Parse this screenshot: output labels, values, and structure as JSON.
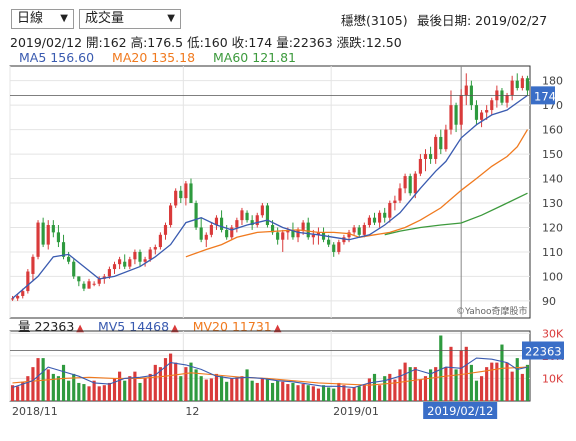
{
  "controls": {
    "period_select": "日線",
    "indicator_select": "成交量"
  },
  "header": {
    "stock": "穩懋(3105)",
    "last_date_label": "最後日期: 2019/02/27"
  },
  "ohlc_line": {
    "date": "2019/02/12",
    "open": "開:162",
    "high": "高:176.5",
    "low": "低:160",
    "close": "收:174",
    "volume": "量:22363",
    "change": "漲跌:12.50"
  },
  "ma_legend": [
    {
      "label": "MA5",
      "value": "156.60",
      "color": "#3a5bb0"
    },
    {
      "label": "MA20",
      "value": "135.18",
      "color": "#f07a1f"
    },
    {
      "label": "MA60",
      "value": "121.81",
      "color": "#3d9a3d"
    }
  ],
  "vol_legend": [
    {
      "label": "量",
      "value": "22363",
      "color": "#222222"
    },
    {
      "label": "MV5",
      "value": "14468",
      "color": "#3a5bb0"
    },
    {
      "label": "MV20",
      "value": "11731",
      "color": "#f07a1f"
    }
  ],
  "colors": {
    "up": "#d93a3a",
    "down": "#2e9a3e",
    "axis": "#333333",
    "tag": "#3a6ec7"
  },
  "watermark": "©Yahoo奇摩股市",
  "chart_data": {
    "type": "candlestick",
    "price_axis": {
      "ticks": [
        90,
        100,
        110,
        120,
        130,
        140,
        150,
        160,
        170,
        180
      ],
      "ylim": [
        83,
        186
      ]
    },
    "volume_axis": {
      "ticks": [
        "10K",
        "20K",
        "30K"
      ],
      "tick_values": [
        10000,
        20000,
        30000
      ],
      "ylim": [
        0,
        31000
      ]
    },
    "x_labels": [
      "2018/11",
      "12",
      "2019/01"
    ],
    "x_label_index": [
      0,
      34,
      63
    ],
    "last_close_tag": "174",
    "last_volume_tag": "22363",
    "cursor_index": 88,
    "cursor_date_tag": "2019/02/12",
    "candles": [
      [
        91,
        92,
        90,
        91
      ],
      [
        91,
        93,
        90,
        92
      ],
      [
        92,
        95,
        91,
        94
      ],
      [
        94,
        103,
        93,
        102
      ],
      [
        101,
        109,
        98,
        108
      ],
      [
        108,
        123,
        107,
        122
      ],
      [
        122,
        124,
        112,
        113
      ],
      [
        113,
        123,
        111,
        121
      ],
      [
        121,
        123,
        116,
        118
      ],
      [
        118,
        121,
        112,
        114
      ],
      [
        114,
        117,
        107,
        108
      ],
      [
        108,
        110,
        105,
        106
      ],
      [
        106,
        107,
        99,
        100
      ],
      [
        100,
        100,
        96,
        98
      ],
      [
        97,
        98,
        94,
        95
      ],
      [
        95,
        99,
        95,
        98
      ],
      [
        97,
        98,
        96,
        97
      ],
      [
        97,
        100,
        96,
        99
      ],
      [
        99,
        101,
        97,
        100
      ],
      [
        100,
        104,
        99,
        103
      ],
      [
        103,
        106,
        101,
        105
      ],
      [
        105,
        108,
        103,
        107
      ],
      [
        106,
        109,
        103,
        104
      ],
      [
        104,
        108,
        103,
        107
      ],
      [
        107,
        111,
        105,
        110
      ],
      [
        110,
        111,
        104,
        106
      ],
      [
        106,
        108,
        104,
        107
      ],
      [
        107,
        112,
        106,
        111
      ],
      [
        111,
        113,
        109,
        112
      ],
      [
        112,
        118,
        111,
        117
      ],
      [
        117,
        122,
        115,
        121
      ],
      [
        121,
        130,
        120,
        129
      ],
      [
        129,
        136,
        128,
        135
      ],
      [
        135,
        137,
        130,
        132
      ],
      [
        132,
        139,
        129,
        138
      ],
      [
        138,
        140,
        130,
        130
      ],
      [
        130,
        131,
        119,
        120
      ],
      [
        120,
        124,
        114,
        115
      ],
      [
        115,
        118,
        112,
        117
      ],
      [
        117,
        122,
        116,
        121
      ],
      [
        121,
        125,
        119,
        124
      ],
      [
        124,
        127,
        118,
        119
      ],
      [
        119,
        121,
        115,
        116
      ],
      [
        116,
        121,
        115,
        120
      ],
      [
        120,
        124,
        118,
        123
      ],
      [
        123,
        128,
        121,
        127
      ],
      [
        126,
        127,
        122,
        123
      ],
      [
        123,
        125,
        119,
        121
      ],
      [
        121,
        126,
        120,
        125
      ],
      [
        125,
        130,
        124,
        129
      ],
      [
        129,
        130,
        120,
        121
      ],
      [
        121,
        123,
        117,
        118
      ],
      [
        118,
        120,
        113,
        115
      ],
      [
        115,
        119,
        110,
        118
      ],
      [
        118,
        120,
        115,
        119
      ],
      [
        119,
        122,
        115,
        116
      ],
      [
        116,
        120,
        114,
        119
      ],
      [
        119,
        123,
        117,
        122
      ],
      [
        122,
        124,
        115,
        116
      ],
      [
        116,
        119,
        113,
        117
      ],
      [
        117,
        120,
        113,
        118
      ],
      [
        118,
        120,
        114,
        115
      ],
      [
        115,
        117,
        112,
        113
      ],
      [
        113,
        114,
        108,
        110
      ],
      [
        110,
        115,
        109,
        114
      ],
      [
        114,
        117,
        113,
        116
      ],
      [
        116,
        119,
        114,
        118
      ],
      [
        118,
        121,
        117,
        120
      ],
      [
        120,
        121,
        116,
        117
      ],
      [
        117,
        122,
        116,
        121
      ],
      [
        121,
        125,
        120,
        124
      ],
      [
        124,
        126,
        121,
        122
      ],
      [
        122,
        127,
        120,
        126
      ],
      [
        126,
        128,
        122,
        124
      ],
      [
        124,
        131,
        122,
        130
      ],
      [
        130,
        133,
        127,
        131
      ],
      [
        131,
        138,
        130,
        136
      ],
      [
        136,
        142,
        134,
        141
      ],
      [
        141,
        142,
        133,
        134
      ],
      [
        134,
        143,
        132,
        142
      ],
      [
        142,
        150,
        141,
        148
      ],
      [
        148,
        152,
        143,
        150
      ],
      [
        150,
        153,
        146,
        148
      ],
      [
        148,
        158,
        146,
        157
      ],
      [
        157,
        160,
        150,
        152
      ],
      [
        152,
        162,
        151,
        160
      ],
      [
        160,
        176,
        158,
        170
      ],
      [
        170,
        171,
        159,
        162
      ],
      [
        162,
        176.5,
        160,
        174
      ],
      [
        174,
        183,
        170,
        178
      ],
      [
        178,
        180,
        168,
        170
      ],
      [
        170,
        172,
        162,
        164
      ],
      [
        164,
        168,
        161,
        167
      ],
      [
        167,
        170,
        164,
        168
      ],
      [
        168,
        173,
        166,
        172
      ],
      [
        172,
        178,
        169,
        176
      ],
      [
        176,
        177,
        170,
        171
      ],
      [
        171,
        175,
        169,
        174
      ],
      [
        174,
        182,
        172,
        180
      ],
      [
        180,
        183,
        176,
        177
      ],
      [
        177,
        182,
        176,
        181
      ],
      [
        181,
        182,
        174,
        176
      ]
    ],
    "volumes": [
      7000,
      6500,
      8500,
      11000,
      15000,
      19000,
      19000,
      14000,
      12000,
      11000,
      16000,
      9000,
      12000,
      8000,
      7500,
      6500,
      9000,
      6500,
      7000,
      8000,
      10000,
      13000,
      9000,
      11000,
      13000,
      8000,
      10000,
      12000,
      16000,
      15000,
      19000,
      21000,
      17000,
      11000,
      15000,
      17000,
      14000,
      11000,
      9500,
      10000,
      12000,
      11000,
      8500,
      10000,
      10500,
      11000,
      14000,
      9000,
      8000,
      10000,
      9500,
      8000,
      9000,
      8500,
      7500,
      8000,
      7000,
      7500,
      7000,
      6500,
      5500,
      7000,
      6000,
      5500,
      8000,
      7000,
      5500,
      6000,
      6500,
      7000,
      10000,
      12000,
      7000,
      11000,
      12000,
      9500,
      14000,
      17000,
      15000,
      15000,
      9500,
      11000,
      14000,
      15000,
      29000,
      15000,
      24000,
      14000,
      22363,
      24000,
      16000,
      9000,
      11000,
      15000,
      17000,
      17000,
      25000,
      17000,
      13000,
      19000,
      12000,
      16000
    ],
    "ma5": [
      [
        0,
        91
      ],
      [
        5,
        100
      ],
      [
        8,
        108
      ],
      [
        11,
        109
      ],
      [
        14,
        104
      ],
      [
        17,
        99
      ],
      [
        20,
        100
      ],
      [
        25,
        104
      ],
      [
        28,
        108
      ],
      [
        31,
        113
      ],
      [
        34,
        122
      ],
      [
        37,
        124
      ],
      [
        40,
        121
      ],
      [
        43,
        119
      ],
      [
        46,
        121
      ],
      [
        50,
        123
      ],
      [
        53,
        120
      ],
      [
        56,
        118
      ],
      [
        60,
        117
      ],
      [
        63,
        116
      ],
      [
        66,
        115
      ],
      [
        70,
        117
      ],
      [
        73,
        121
      ],
      [
        76,
        126
      ],
      [
        78,
        131
      ],
      [
        80,
        136
      ],
      [
        83,
        143
      ],
      [
        85,
        147
      ],
      [
        88,
        156.6
      ],
      [
        91,
        162
      ],
      [
        94,
        166
      ],
      [
        97,
        168
      ],
      [
        101,
        174
      ]
    ],
    "ma20": [
      [
        34,
        108
      ],
      [
        38,
        111
      ],
      [
        41,
        113
      ],
      [
        44,
        116
      ],
      [
        48,
        118
      ],
      [
        52,
        118.5
      ],
      [
        56,
        119
      ],
      [
        60,
        118
      ],
      [
        63,
        118
      ],
      [
        66,
        117.5
      ],
      [
        68,
        116
      ],
      [
        71,
        117
      ],
      [
        74,
        118
      ],
      [
        77,
        120
      ],
      [
        80,
        123
      ],
      [
        84,
        128
      ],
      [
        88,
        135.18
      ],
      [
        91,
        140
      ],
      [
        94,
        145
      ],
      [
        97,
        149
      ],
      [
        99,
        153
      ],
      [
        101,
        160
      ]
    ],
    "ma60": [
      [
        73,
        117
      ],
      [
        76,
        118.5
      ],
      [
        80,
        120
      ],
      [
        84,
        121
      ],
      [
        88,
        121.81
      ],
      [
        92,
        125
      ],
      [
        96,
        129
      ],
      [
        101,
        134
      ]
    ],
    "mv5": [
      [
        0,
        6000
      ],
      [
        4,
        9000
      ],
      [
        7,
        15000
      ],
      [
        10,
        13000
      ],
      [
        13,
        11000
      ],
      [
        16,
        8000
      ],
      [
        19,
        7500
      ],
      [
        22,
        10000
      ],
      [
        25,
        10500
      ],
      [
        28,
        11500
      ],
      [
        31,
        17000
      ],
      [
        34,
        16000
      ],
      [
        37,
        14000
      ],
      [
        40,
        11000
      ],
      [
        43,
        10000
      ],
      [
        46,
        10500
      ],
      [
        49,
        10000
      ],
      [
        52,
        9000
      ],
      [
        55,
        8500
      ],
      [
        58,
        7500
      ],
      [
        61,
        6500
      ],
      [
        64,
        6500
      ],
      [
        67,
        6000
      ],
      [
        70,
        8000
      ],
      [
        73,
        9000
      ],
      [
        76,
        11000
      ],
      [
        79,
        14000
      ],
      [
        82,
        12000
      ],
      [
        85,
        15000
      ],
      [
        88,
        14468
      ],
      [
        91,
        19000
      ],
      [
        94,
        18500
      ],
      [
        97,
        17000
      ],
      [
        99,
        14000
      ],
      [
        101,
        15000
      ]
    ],
    "mv20": [
      [
        0,
        8000
      ],
      [
        5,
        9000
      ],
      [
        10,
        10000
      ],
      [
        15,
        10500
      ],
      [
        20,
        10000
      ],
      [
        25,
        10000
      ],
      [
        30,
        11000
      ],
      [
        35,
        12500
      ],
      [
        40,
        11500
      ],
      [
        45,
        10500
      ],
      [
        50,
        10000
      ],
      [
        55,
        9000
      ],
      [
        60,
        8000
      ],
      [
        65,
        7500
      ],
      [
        70,
        7000
      ],
      [
        75,
        8000
      ],
      [
        80,
        9500
      ],
      [
        85,
        11000
      ],
      [
        88,
        11731
      ],
      [
        92,
        13000
      ],
      [
        96,
        14500
      ],
      [
        101,
        15000
      ]
    ]
  }
}
